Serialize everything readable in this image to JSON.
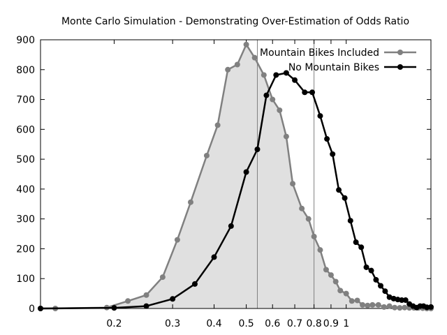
{
  "chart_data": {
    "type": "line",
    "title": "Monte Carlo Simulation - Demonstrating Over-Estimation of Odds Ratio",
    "xlabel": "",
    "ylabel": "",
    "x_scale": "log",
    "xlim": [
      0.12,
      1.8
    ],
    "ylim": [
      0,
      900
    ],
    "x_ticks": [
      0.2,
      0.3,
      0.4,
      0.5,
      0.6,
      0.7,
      0.8,
      0.9,
      1
    ],
    "x_tick_labels": [
      "0.2",
      "0.3",
      "0.4",
      "0.5",
      "0.6",
      "0.7",
      "0.8",
      "0.9",
      "1"
    ],
    "y_ticks": [
      0,
      100,
      200,
      300,
      400,
      500,
      600,
      700,
      800,
      900
    ],
    "y_tick_labels": [
      "0",
      "100",
      "200",
      "300",
      "400",
      "500",
      "600",
      "700",
      "800",
      "900"
    ],
    "reference_lines_x": [
      0.54,
      0.8
    ],
    "legend_position": "top-right",
    "grid": false,
    "series": [
      {
        "name": "Mountain Bikes Included",
        "color": "#808080",
        "fill": "#e0e0e0",
        "points": [
          [
            0.12,
            0
          ],
          [
            0.133,
            0
          ],
          [
            0.19,
            3
          ],
          [
            0.22,
            25
          ],
          [
            0.25,
            45
          ],
          [
            0.28,
            105
          ],
          [
            0.31,
            230
          ],
          [
            0.34,
            356
          ],
          [
            0.38,
            512
          ],
          [
            0.41,
            614
          ],
          [
            0.44,
            800
          ],
          [
            0.47,
            817
          ],
          [
            0.5,
            884
          ],
          [
            0.53,
            840
          ],
          [
            0.565,
            782
          ],
          [
            0.6,
            700
          ],
          [
            0.63,
            664
          ],
          [
            0.66,
            576
          ],
          [
            0.69,
            418
          ],
          [
            0.735,
            335
          ],
          [
            0.77,
            300
          ],
          [
            0.8,
            241
          ],
          [
            0.835,
            196
          ],
          [
            0.87,
            130
          ],
          [
            0.9,
            112
          ],
          [
            0.93,
            90
          ],
          [
            0.96,
            60
          ],
          [
            1.0,
            50
          ],
          [
            1.04,
            25
          ],
          [
            1.08,
            27
          ],
          [
            1.12,
            12
          ],
          [
            1.16,
            10
          ],
          [
            1.2,
            12
          ],
          [
            1.25,
            12
          ],
          [
            1.3,
            5
          ],
          [
            1.35,
            8
          ],
          [
            1.4,
            3
          ],
          [
            1.45,
            2
          ],
          [
            1.5,
            3
          ],
          [
            1.55,
            2
          ],
          [
            1.6,
            2
          ],
          [
            1.65,
            2
          ],
          [
            1.7,
            1
          ],
          [
            1.75,
            0
          ],
          [
            1.8,
            0
          ]
        ]
      },
      {
        "name": "No Mountain Bikes",
        "color": "#000000",
        "points": [
          [
            0.12,
            0
          ],
          [
            0.2,
            2
          ],
          [
            0.25,
            8
          ],
          [
            0.3,
            32
          ],
          [
            0.35,
            82
          ],
          [
            0.4,
            172
          ],
          [
            0.45,
            276
          ],
          [
            0.5,
            457
          ],
          [
            0.54,
            533
          ],
          [
            0.575,
            714
          ],
          [
            0.615,
            782
          ],
          [
            0.66,
            789
          ],
          [
            0.7,
            765
          ],
          [
            0.75,
            724
          ],
          [
            0.79,
            724
          ],
          [
            0.835,
            645
          ],
          [
            0.875,
            568
          ],
          [
            0.91,
            517
          ],
          [
            0.95,
            397
          ],
          [
            0.99,
            370
          ],
          [
            1.03,
            294
          ],
          [
            1.07,
            222
          ],
          [
            1.11,
            205
          ],
          [
            1.15,
            138
          ],
          [
            1.19,
            127
          ],
          [
            1.23,
            96
          ],
          [
            1.27,
            76
          ],
          [
            1.31,
            58
          ],
          [
            1.35,
            38
          ],
          [
            1.39,
            33
          ],
          [
            1.43,
            30
          ],
          [
            1.47,
            28
          ],
          [
            1.51,
            28
          ],
          [
            1.55,
            15
          ],
          [
            1.59,
            8
          ],
          [
            1.63,
            3
          ],
          [
            1.67,
            8
          ],
          [
            1.71,
            8
          ],
          [
            1.75,
            4
          ],
          [
            1.8,
            5
          ]
        ]
      }
    ]
  }
}
